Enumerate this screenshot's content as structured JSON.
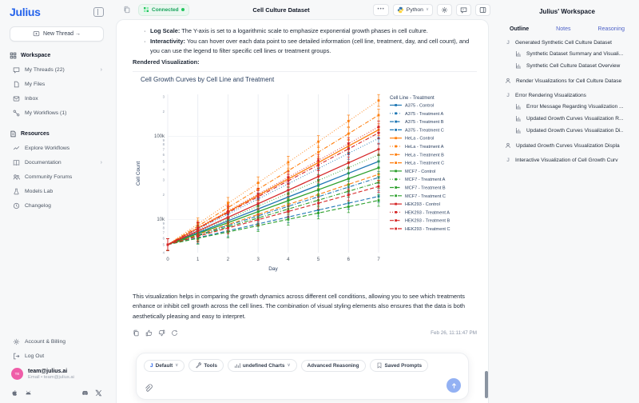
{
  "app": {
    "logo": "Julius"
  },
  "sidebar": {
    "new_thread_label": "New Thread →",
    "workspace": {
      "title": "Workspace",
      "items": [
        {
          "label": "My Threads (22)"
        },
        {
          "label": "My Files"
        },
        {
          "label": "Inbox"
        },
        {
          "label": "My Workflows (1)"
        }
      ]
    },
    "resources": {
      "title": "Resources",
      "items": [
        {
          "label": "Explore Workflows"
        },
        {
          "label": "Documentation"
        },
        {
          "label": "Community Forums"
        },
        {
          "label": "Models Lab"
        },
        {
          "label": "Changelog"
        }
      ]
    },
    "footer": {
      "account": "Account & Billing",
      "logout": "Log Out",
      "avatar_initials": "TE",
      "email_title": "team@julius.ai",
      "email_sub": "Email • team@julius.ai"
    }
  },
  "topbar": {
    "status": "Connected",
    "title": "Cell Culture Dataset",
    "more_label": "•••",
    "language": "Python"
  },
  "message": {
    "bullet1_title": "Log Scale:",
    "bullet1_text": " The Y-axis is set to a logarithmic scale to emphasize exponential growth phases in cell culture.",
    "bullet2_title": "Interactivity:",
    "bullet2_text": " You can hover over each data point to see detailed information (cell line, treatment, day, and cell count), and you can use the legend to filter specific cell lines or treatment groups.",
    "rendered_label": "Rendered Visualization:",
    "closing_text": "This visualization helps in comparing the growth dynamics across different cell conditions, allowing you to see which treatments enhance or inhibit cell growth across the cell lines. The combination of visual styling elements also ensures that the data is both aesthetically pleasing and easy to interpret.",
    "timestamp": "Feb 26, 11:11:47 PM"
  },
  "chart_data": {
    "type": "line",
    "title": "Cell Growth Curves by Cell Line and Treatment",
    "xlabel": "Day",
    "ylabel": "Cell Count",
    "x": [
      0,
      1,
      2,
      3,
      4,
      5,
      6,
      7
    ],
    "yscale": "log",
    "ylim": [
      4000,
      320000
    ],
    "grid": true,
    "legend_position": "right",
    "legend_title": "Cell Line - Treatment",
    "error_bars": "percent, ~±15% with caps, square markers",
    "colors": {
      "A375": "#1f77b4",
      "HeLa": "#ff7f0e",
      "MCF7": "#2ca02c",
      "HEK293": "#d62728"
    },
    "series": [
      {
        "name": "A375 - Control",
        "color": "#1f77b4",
        "dash": "solid",
        "values": [
          5000,
          6950,
          9650,
          13400,
          18650,
          25900,
          36000,
          50000
        ]
      },
      {
        "name": "A375 - Treatment A",
        "color": "#1f77b4",
        "dash": "dot",
        "values": [
          5000,
          7600,
          11600,
          17700,
          26900,
          41000,
          62500,
          95000
        ]
      },
      {
        "name": "A375 - Treatment B",
        "color": "#1f77b4",
        "dash": "dash",
        "values": [
          5000,
          6050,
          7330,
          8870,
          10740,
          13000,
          15730,
          19000
        ]
      },
      {
        "name": "A375 - Treatment C",
        "color": "#1f77b4",
        "dash": "dashdot",
        "values": [
          5000,
          6520,
          8500,
          11080,
          14450,
          18840,
          24560,
          32000
        ]
      },
      {
        "name": "HeLa - Control",
        "color": "#ff7f0e",
        "dash": "solid",
        "values": [
          5000,
          7880,
          12400,
          19540,
          30780,
          48480,
          76370,
          120000
        ]
      },
      {
        "name": "HeLa - Treatment A",
        "color": "#ff7f0e",
        "dash": "dot",
        "values": [
          5000,
          8840,
          15630,
          27640,
          48870,
          86400,
          152700,
          270000
        ]
      },
      {
        "name": "HeLa - Treatment B",
        "color": "#ff7f0e",
        "dash": "dash",
        "values": [
          5000,
          6600,
          8720,
          11510,
          15190,
          20050,
          26470,
          35000
        ]
      },
      {
        "name": "HeLa - Treatment C",
        "color": "#ff7f0e",
        "dash": "dashdot",
        "values": [
          5000,
          8340,
          13910,
          23200,
          38700,
          64560,
          107700,
          180000
        ]
      },
      {
        "name": "MCF7 - Control",
        "color": "#2ca02c",
        "dash": "solid",
        "values": [
          5000,
          6780,
          9180,
          12440,
          16860,
          22850,
          30970,
          42000
        ]
      },
      {
        "name": "MCF7 - Treatment A",
        "color": "#2ca02c",
        "dash": "dot",
        "values": [
          5000,
          7130,
          10170,
          14500,
          20680,
          29490,
          42060,
          60000
        ]
      },
      {
        "name": "MCF7 - Treatment B",
        "color": "#2ca02c",
        "dash": "dash",
        "values": [
          5000,
          5960,
          7090,
          8450,
          10060,
          11980,
          14270,
          17000
        ]
      },
      {
        "name": "MCF7 - Treatment C",
        "color": "#2ca02c",
        "dash": "dashdot",
        "values": [
          5000,
          6400,
          8180,
          10460,
          13380,
          17120,
          21890,
          28000
        ]
      },
      {
        "name": "HEK293 - Control",
        "color": "#d62728",
        "dash": "solid",
        "values": [
          5000,
          7290,
          10630,
          15500,
          22600,
          32940,
          48030,
          70000
        ]
      },
      {
        "name": "HEK293 - Treatment A",
        "color": "#d62728",
        "dash": "dot",
        "values": [
          5000,
          7970,
          12690,
          20220,
          32210,
          51320,
          81750,
          130000
        ]
      },
      {
        "name": "HEK293 - Treatment B",
        "color": "#d62728",
        "dash": "dash",
        "values": [
          5000,
          6290,
          7910,
          9950,
          12510,
          15740,
          19790,
          25000
        ]
      },
      {
        "name": "HEK293 - Treatment C",
        "color": "#d62728",
        "dash": "dashdot",
        "values": [
          5000,
          7780,
          12090,
          18800,
          29240,
          45470,
          70720,
          110000
        ]
      }
    ]
  },
  "composer": {
    "chips": [
      "Default",
      "Tools",
      "undefined Charts",
      "Advanced Reasoning",
      "Saved Prompts"
    ]
  },
  "workspace_panel": {
    "title": "Julius' Workspace",
    "tabs": [
      "Outline",
      "Notes",
      "Reasoning"
    ],
    "items": [
      {
        "label": "Generated Synthetic Cell Culture Dataset"
      },
      {
        "label": "Synthetic Dataset Summary and Visuali..."
      },
      {
        "label": "Synthetic Cell Culture Dataset Overview"
      },
      {
        "label": "Render Visualizations for Cell Culture Datase"
      },
      {
        "label": "Error Rendering Visualizations"
      },
      {
        "label": "Error Message Regarding Visualization ..."
      },
      {
        "label": "Updated Growth Curves Visualization R..."
      },
      {
        "label": "Updated Growth Curves Visualization Di.."
      },
      {
        "label": "Updated Growth Curves Visualization Displa"
      },
      {
        "label": "Interactive Visualization of Cell Growth Curv"
      }
    ]
  }
}
